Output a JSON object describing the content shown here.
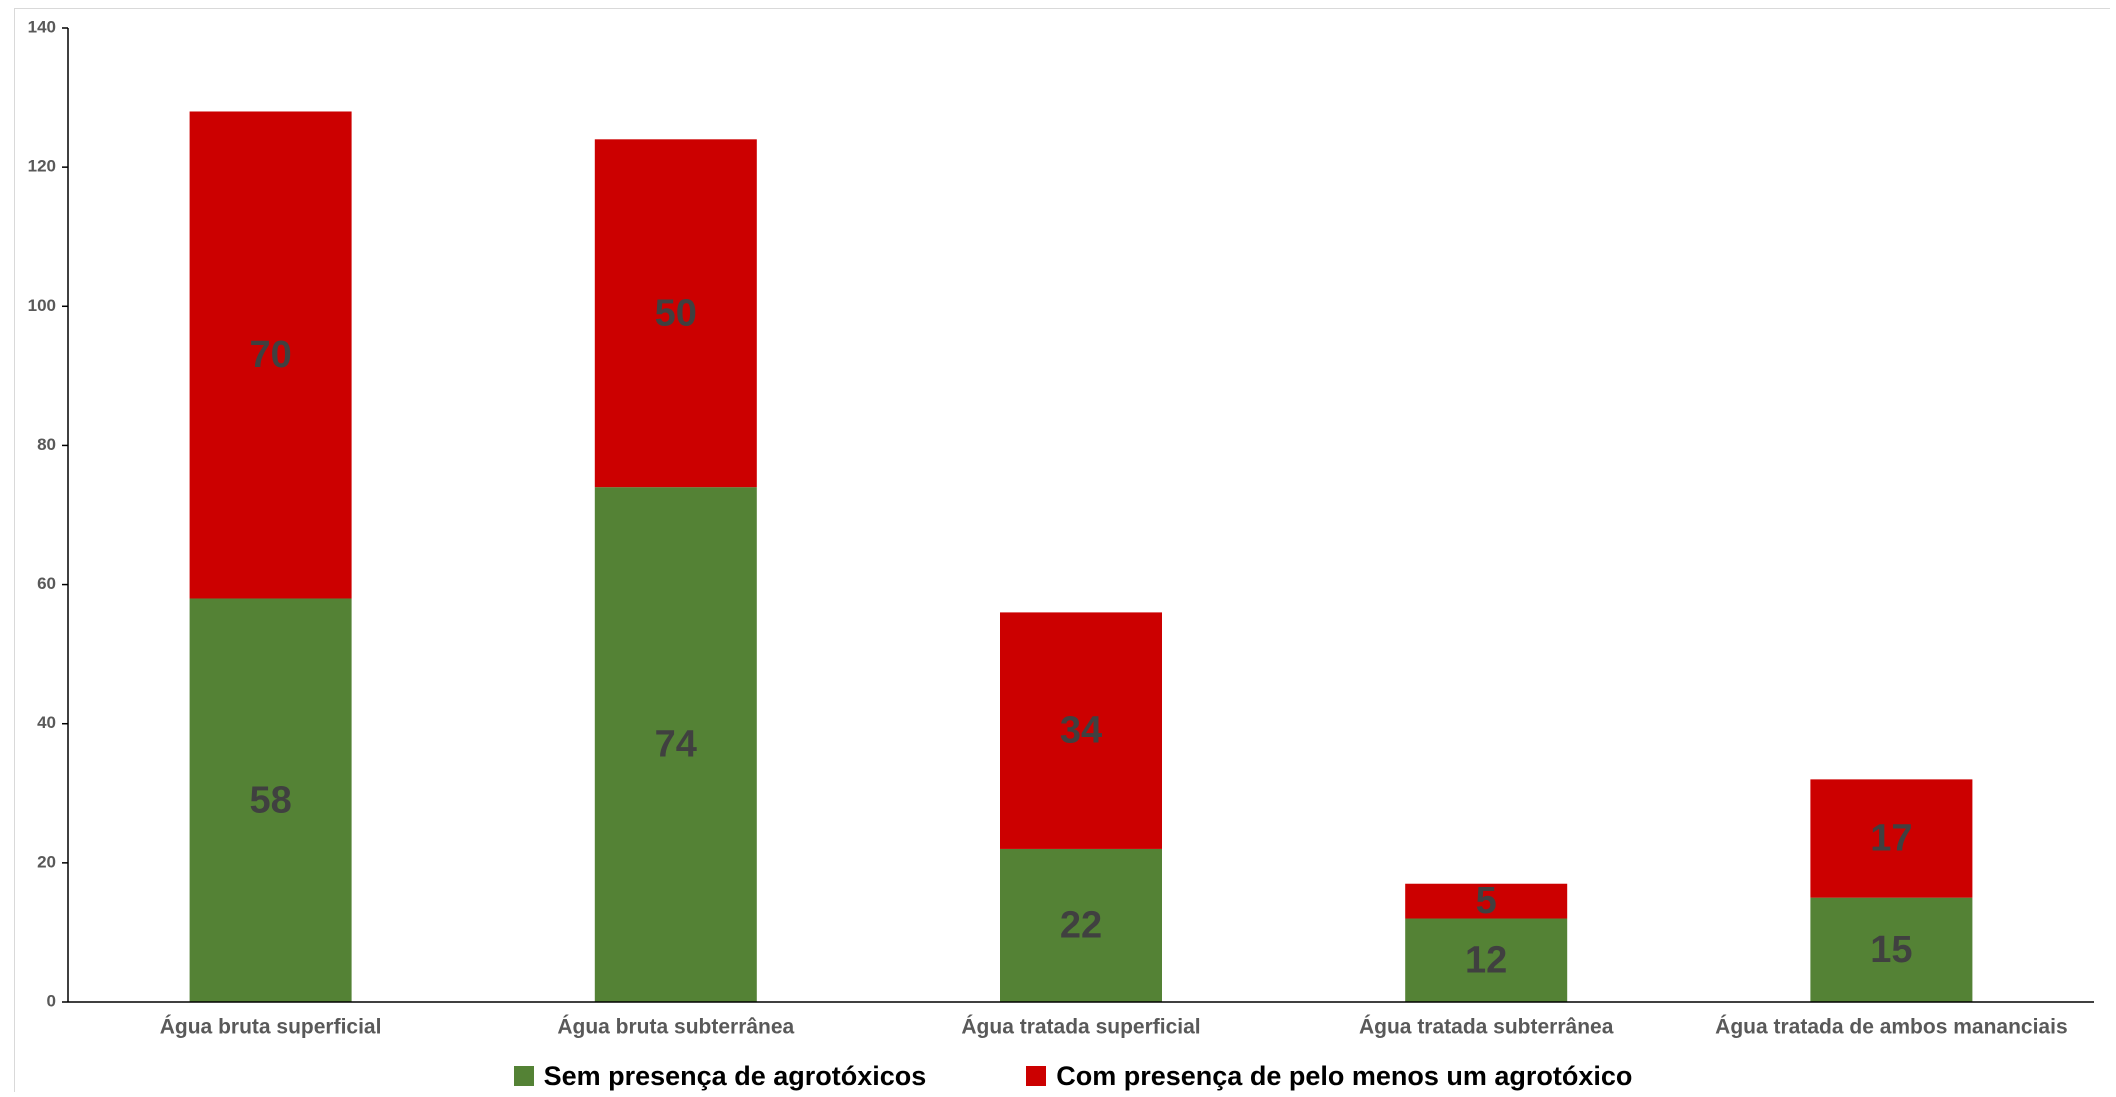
{
  "chart_data": {
    "type": "bar",
    "stacked": true,
    "categories": [
      "Água bruta superficial",
      "Água bruta subterrânea",
      "Água tratada superficial",
      "Água tratada subterrânea",
      "Água tratada de ambos mananciais"
    ],
    "series": [
      {
        "name": "Sem presença de agrotóxicos",
        "color": "#548235",
        "values": [
          58,
          74,
          22,
          12,
          15
        ]
      },
      {
        "name": "Com presença de pelo menos um agrotóxico",
        "color": "#cc0000",
        "values": [
          70,
          50,
          34,
          5,
          17
        ]
      }
    ],
    "title": "",
    "xlabel": "",
    "ylabel": "",
    "ylim": [
      0,
      140
    ],
    "yticks": [
      0,
      20,
      40,
      60,
      80,
      100,
      120,
      140
    ],
    "grid": false,
    "legend_position": "bottom",
    "data_labels": true
  }
}
